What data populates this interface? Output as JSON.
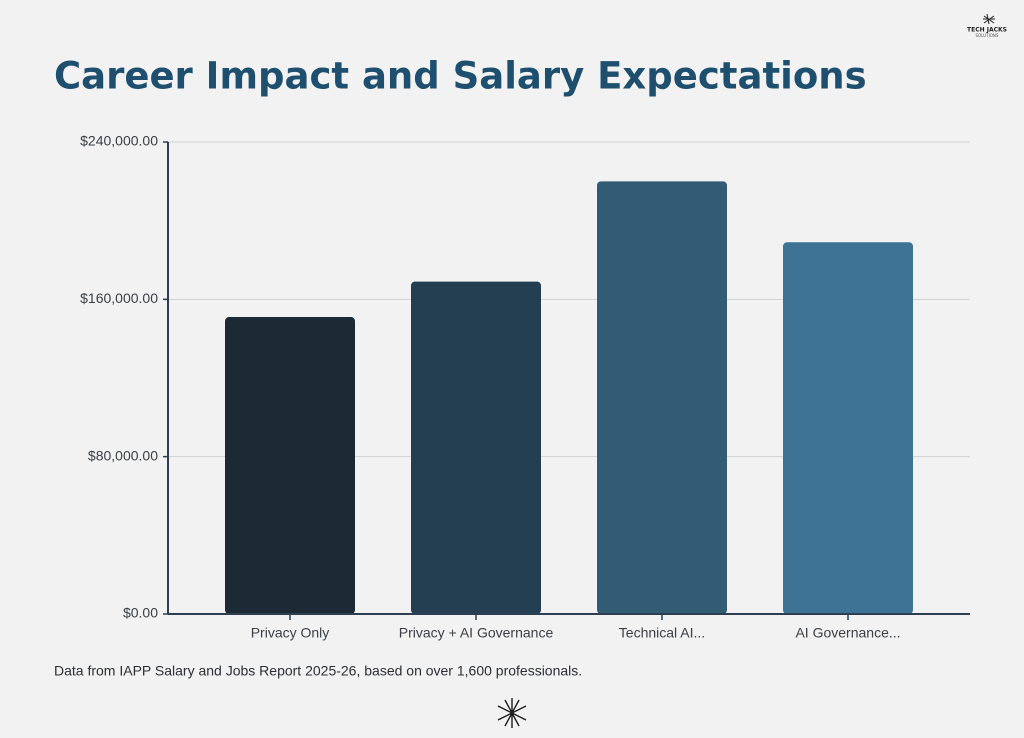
{
  "chart_data": {
    "type": "bar",
    "title": "Career Impact and Salary Expectations",
    "categories": [
      "Privacy Only",
      "Privacy + AI Governance",
      "Technical AI...",
      "AI Governance..."
    ],
    "values": [
      151000,
      169000,
      220000,
      189000
    ],
    "colors": [
      "#1b2a35",
      "#243f52",
      "#325c75",
      "#3e7396"
    ],
    "ylim": [
      0,
      240000
    ],
    "yticks": [
      {
        "value": 0,
        "label": "$0.00"
      },
      {
        "value": 80000,
        "label": "$80,000.00"
      },
      {
        "value": 160000,
        "label": "$160,000.00"
      },
      {
        "value": 240000,
        "label": "$240,000.00"
      }
    ],
    "grid": true,
    "note": "Data from IAPP Salary and Jobs Report 2025-26, based on over 1,600 professionals."
  },
  "logo": {
    "line1": "TECH JACKS",
    "line2": "SOLUTIONS"
  }
}
